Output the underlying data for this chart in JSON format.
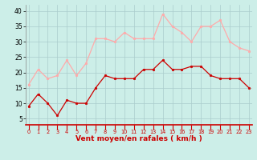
{
  "hours": [
    0,
    1,
    2,
    3,
    4,
    5,
    6,
    7,
    8,
    9,
    10,
    11,
    12,
    13,
    14,
    15,
    16,
    17,
    18,
    19,
    20,
    21,
    22,
    23
  ],
  "vent_moyen": [
    9,
    13,
    10,
    6,
    11,
    10,
    10,
    15,
    19,
    18,
    18,
    18,
    21,
    21,
    24,
    21,
    21,
    22,
    22,
    19,
    18,
    18,
    18,
    15
  ],
  "rafales": [
    16,
    21,
    18,
    19,
    24,
    19,
    23,
    31,
    31,
    30,
    33,
    31,
    31,
    31,
    39,
    35,
    33,
    30,
    35,
    35,
    37,
    30,
    28,
    27
  ],
  "color_moyen": "#cc0000",
  "color_rafales": "#ffaaaa",
  "bg_color": "#cceee8",
  "grid_color": "#aacccc",
  "xlabel": "Vent moyen/en rafales ( km/h )",
  "xlabel_color": "#cc0000",
  "ylabel_ticks": [
    5,
    10,
    15,
    20,
    25,
    30,
    35,
    40
  ],
  "ylim": [
    3,
    42
  ],
  "xlim": [
    -0.3,
    23.3
  ]
}
